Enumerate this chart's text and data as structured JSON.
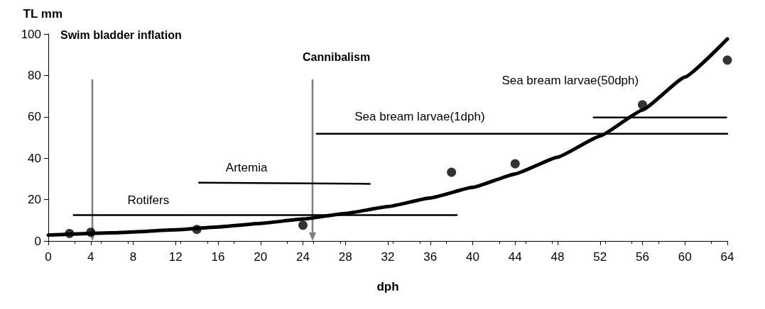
{
  "chart_data": {
    "type": "scatter",
    "xlabel": "dph",
    "ylabel": "TL mm",
    "xlim": [
      0,
      64
    ],
    "xticks": [
      0,
      4,
      8,
      12,
      16,
      20,
      24,
      28,
      32,
      36,
      40,
      44,
      48,
      52,
      56,
      60,
      64
    ],
    "ylim": [
      0,
      100
    ],
    "yticks": [
      0,
      20,
      40,
      60,
      80,
      100
    ],
    "grid": false,
    "series": [
      {
        "color": "#000000",
        "marker": "circle",
        "x": [
          2,
          4,
          14,
          24,
          38,
          44,
          56,
          64
        ],
        "values": [
          3.6,
          4.2,
          5.6,
          7.6,
          33.2,
          37.3,
          65.8,
          87.4
        ]
      },
      {
        "type": "line",
        "color": "#000000",
        "x": [
          0,
          6,
          8,
          12,
          16,
          20,
          24,
          28,
          32,
          36,
          40,
          44,
          48,
          52,
          56,
          60,
          64
        ],
        "values": [
          2.8,
          3.9,
          4.4,
          5.4,
          6.8,
          8.5,
          10.6,
          13.3,
          16.6,
          20.8,
          25.9,
          32.4,
          40.5,
          50.7,
          63.3,
          79.2,
          97.6
        ]
      },
      {
        "type": "line",
        "name": "Rotifers",
        "color": "#000000",
        "x": [
          2.4,
          38.5
        ],
        "values": [
          12.5,
          12.5
        ]
      },
      {
        "type": "line",
        "name": "Artemia",
        "color": "#000000",
        "x": [
          14.2,
          30.3
        ],
        "values": [
          28.2,
          27.6
        ]
      },
      {
        "type": "line",
        "name": "Sea bream larvae(1dph)",
        "color": "#000000",
        "x": [
          25.3,
          64
        ],
        "values": [
          51.8,
          51.8
        ]
      },
      {
        "type": "line",
        "name": "Sea bream larvae(50dph)",
        "color": "#000000",
        "x": [
          51.4,
          63.9
        ],
        "values": [
          59.7,
          59.7
        ]
      }
    ],
    "annotations": [
      "Swim bladder inflation",
      "Cannibalism"
    ]
  }
}
